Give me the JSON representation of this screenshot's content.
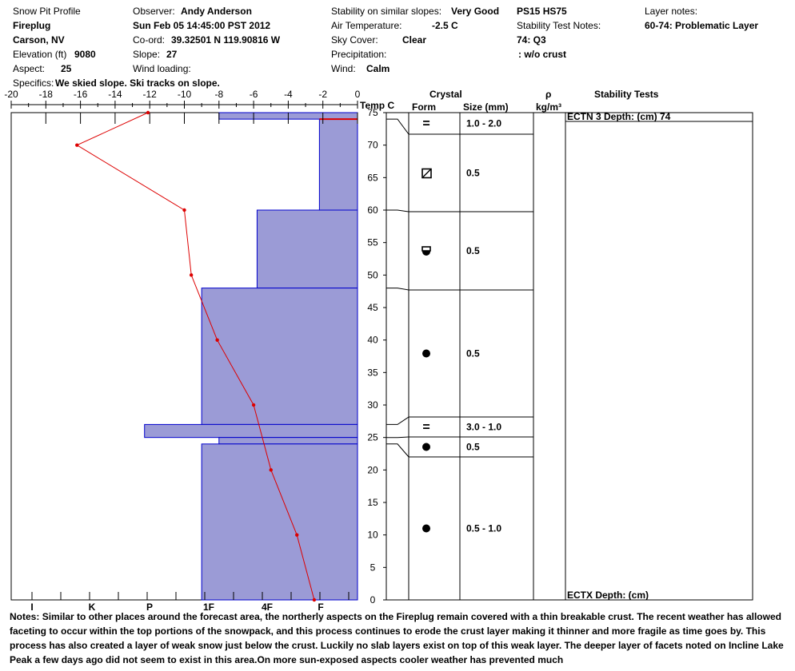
{
  "header": {
    "title": "Snow Pit Profile",
    "location": "Fireplug",
    "region": "Carson, NV",
    "elevation_label": "Elevation (ft)",
    "elevation": "9080",
    "aspect_label": "Aspect:",
    "aspect": "25",
    "specifics_label": "Specifics:",
    "specifics": "We skied slope. Ski tracks on slope.",
    "observer_label": "Observer:",
    "observer": "Andy Anderson",
    "datetime": "Sun Feb 05 14:45:00 PST 2012",
    "coord_label": "Co-ord:",
    "coord": "39.32501 N 119.90816 W",
    "slope_label": "Slope:",
    "slope": "27",
    "wind_loading_label": "Wind loading:",
    "wind_loading": "",
    "stability_label": "Stability on similar slopes:",
    "stability": "Very Good",
    "air_temp_label": "Air Temperature:",
    "air_temp": "-2.5 C",
    "sky_label": "Sky Cover:",
    "sky": "Clear",
    "precip_label": "Precipitation:",
    "precip": "",
    "wind_label": "Wind:",
    "wind": "Calm",
    "ps_hs": "PS15 HS75",
    "stab_notes_label": "Stability Test Notes:",
    "stab_note_1": "74: Q3",
    "stab_note_2": ": w/o crust",
    "layer_notes_label": "Layer notes:",
    "layer_note_1": "60-74: Problematic Layer"
  },
  "columns": {
    "temp": "Temp C",
    "crystal": "Crystal",
    "form": "Form",
    "size": "Size (mm)",
    "rho": "ρ",
    "density_unit": "kg/m³",
    "stability_tests": "Stability Tests"
  },
  "stability_tests": [
    {
      "text": "ECTN 3   Depth: (cm) 74",
      "depth": 74
    },
    {
      "text": "ECTX   Depth: (cm)",
      "depth": 0
    }
  ],
  "chart_data": {
    "type": "snow-profile",
    "temperature_axis": {
      "ticks": [
        -20,
        -18,
        -16,
        -14,
        -12,
        -10,
        -8,
        -6,
        -4,
        -2,
        0
      ],
      "range": [
        -20,
        0
      ]
    },
    "height_axis": {
      "ticks": [
        0,
        5,
        10,
        15,
        20,
        25,
        30,
        35,
        40,
        45,
        50,
        55,
        60,
        65,
        70,
        75
      ],
      "range": [
        0,
        75
      ]
    },
    "hardness_ticks": [
      "I",
      "K",
      "P",
      "1F",
      "4F",
      "F"
    ],
    "temperature_profile": [
      {
        "height": 0,
        "temp": -2.5
      },
      {
        "height": 10,
        "temp": -3.5
      },
      {
        "height": 20,
        "temp": -5.0
      },
      {
        "height": 30,
        "temp": -6.0
      },
      {
        "height": 40,
        "temp": -8.1
      },
      {
        "height": 50,
        "temp": -9.6
      },
      {
        "height": 60,
        "temp": -10.0
      },
      {
        "height": 70,
        "temp": -16.2
      },
      {
        "height": 75,
        "temp": -12.1
      }
    ],
    "layers": [
      {
        "bottom": 74,
        "top": 75,
        "hardness_temp": -8.0,
        "form": "=",
        "size": "1.0 - 2.0"
      },
      {
        "bottom": 60,
        "top": 74,
        "hardness_temp": -2.2,
        "form": "▨",
        "size": "0.5"
      },
      {
        "bottom": 48,
        "top": 60,
        "hardness_temp": -5.8,
        "form": "◒",
        "size": "0.5"
      },
      {
        "bottom": 27,
        "top": 48,
        "hardness_temp": -9.0,
        "form": "●",
        "size": "0.5"
      },
      {
        "bottom": 25,
        "top": 27,
        "hardness_temp": -12.3,
        "form": "=",
        "size": "3.0 - 1.0"
      },
      {
        "bottom": 24,
        "top": 25,
        "hardness_temp": -8.0,
        "form": "●",
        "size": "0.5"
      },
      {
        "bottom": 0,
        "top": 24,
        "hardness_temp": -9.0,
        "form": "●",
        "size": "0.5 - 1.0"
      }
    ],
    "marker_line_height": 74
  },
  "notes": {
    "label": "Notes:",
    "text": "Similar to other places around the forecast area, the northerly aspects on the Fireplug remain covered with a thin breakable crust. The recent weather has allowed faceting to occur within the top portions of the snowpack, and this process continues to erode the crust layer making it thinner and more fragile as time goes by. This process has also created a layer of weak snow just below the crust. Luckily no slab layers exist on top of this weak layer. The deeper layer of facets noted on Incline Lake Peak a few days ago did not seem to exist in this area.On more sun-exposed aspects cooler weather has prevented much"
  },
  "colors": {
    "layer_fill": "#9b9bd6",
    "layer_edge": "#0000cc",
    "temp_line": "#dd0000"
  }
}
